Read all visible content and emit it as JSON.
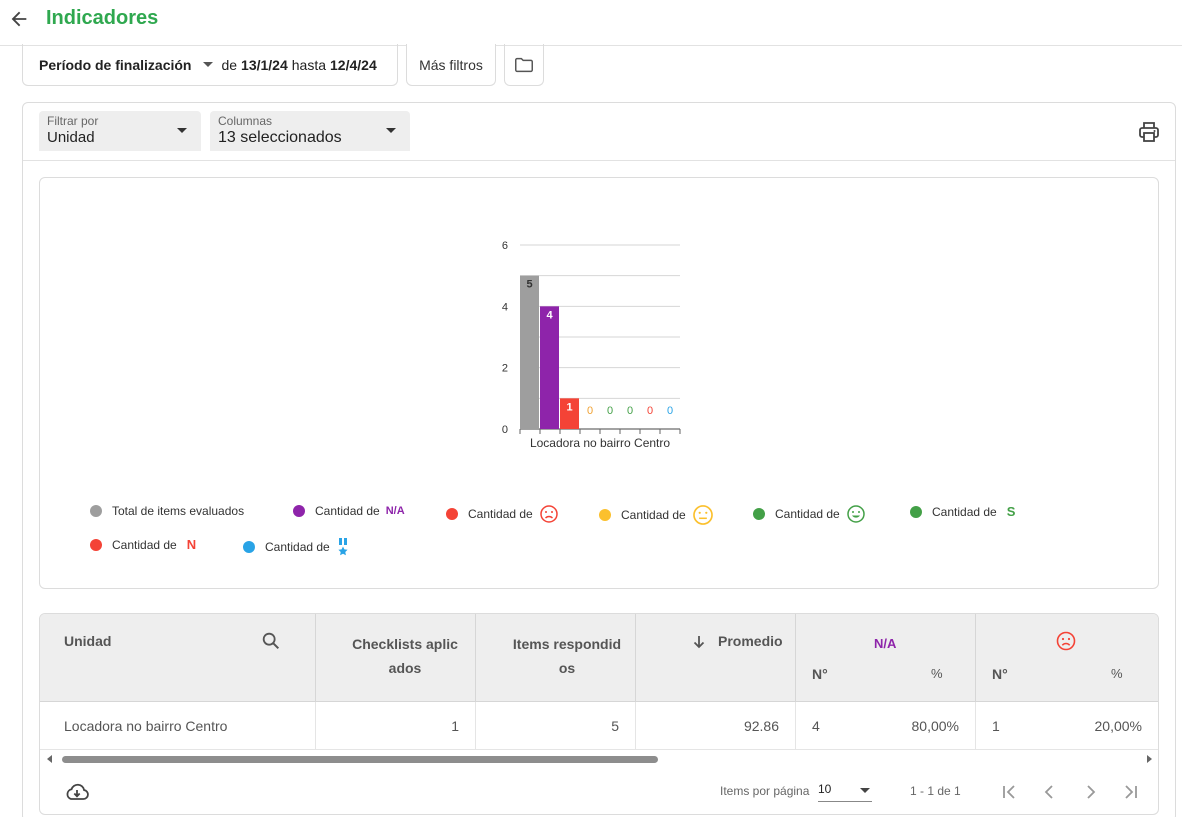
{
  "header": {
    "title": "Indicadores"
  },
  "period": {
    "label": "Período de finalización",
    "from_word": "de",
    "from": "13/1/24",
    "to_word": "hasta",
    "to": "12/4/24"
  },
  "buttons": {
    "more_filters": "Más filtros"
  },
  "filter_by": {
    "label": "Filtrar por",
    "value": "Unidad"
  },
  "columns": {
    "label": "Columnas",
    "value": "13 seleccionados"
  },
  "chart_data": {
    "type": "bar",
    "categories": [
      "Locadora no bairro Centro"
    ],
    "series": [
      {
        "name": "Total de items evaluados",
        "color": "#9e9e9e",
        "label_color": "#333333",
        "values": [
          5
        ]
      },
      {
        "name": "Cantidad de N/A",
        "color": "#8e24aa",
        "label_color": "#ffffff",
        "values": [
          4
        ]
      },
      {
        "name": "Cantidad de (sad face)",
        "color": "#f44336",
        "label_color": "#ffffff",
        "values": [
          1
        ]
      },
      {
        "name": "Cantidad de (neutral face)",
        "color": "#fbc02d",
        "label_color": "#f0a030",
        "values": [
          0
        ]
      },
      {
        "name": "Cantidad de (happy face)",
        "color": "#43a047",
        "label_color": "#43a047",
        "values": [
          0
        ]
      },
      {
        "name": "Cantidad de S",
        "color": "#43a047",
        "label_color": "#43a047",
        "values": [
          0
        ]
      },
      {
        "name": "Cantidad de N",
        "color": "#f44336",
        "label_color": "#f44336",
        "values": [
          0
        ]
      },
      {
        "name": "Cantidad de (medal)",
        "color": "#29a3e6",
        "label_color": "#29a3e6",
        "values": [
          0
        ]
      }
    ],
    "y_ticks": [
      "0",
      "2",
      "4",
      "6"
    ],
    "ylim": [
      0,
      6
    ],
    "grid": true,
    "legend_placement": "bottom"
  },
  "legend": [
    {
      "text": "Total de items evaluados",
      "suffix": "",
      "icon": "",
      "color": "#9e9e9e"
    },
    {
      "text": "Cantidad de",
      "suffix": "N/A",
      "icon": "",
      "color": "#8e24aa"
    },
    {
      "text": "Cantidad de",
      "suffix": "",
      "icon": "sad-face-icon",
      "color": "#f44336"
    },
    {
      "text": "Cantidad de",
      "suffix": "",
      "icon": "neutral-face-icon",
      "color": "#fbc02d"
    },
    {
      "text": "Cantidad de",
      "suffix": "",
      "icon": "happy-face-icon",
      "color": "#43a047"
    },
    {
      "text": "Cantidad de",
      "suffix": "S",
      "icon": "",
      "color": "#43a047"
    },
    {
      "text": "Cantidad de",
      "suffix": "N",
      "icon": "",
      "color": "#f44336"
    },
    {
      "text": "Cantidad de",
      "suffix": "",
      "icon": "medal-icon",
      "color": "#29a3e6"
    }
  ],
  "table": {
    "headers": {
      "unit": "Unidad",
      "checklists": "Checklists aplic ados",
      "items": "Items respondid os",
      "average": "Promedio",
      "na_group": "N/A",
      "number": "N°",
      "percent": "%"
    },
    "rows": [
      {
        "unit": "Locadora no bairro Centro",
        "checklists": "1",
        "items": "5",
        "average": "92.86",
        "na_count": "4",
        "na_pct": "80,00%",
        "sad_count": "1",
        "sad_pct": "20,00%"
      }
    ]
  },
  "pagination": {
    "items_per_page_label": "Items por página",
    "items_per_page": "10",
    "range": "1 - 1 de 1"
  },
  "colors": {
    "brand_green": "#2fa84f",
    "na_purple": "#8e24aa",
    "sad_red": "#f44336"
  }
}
